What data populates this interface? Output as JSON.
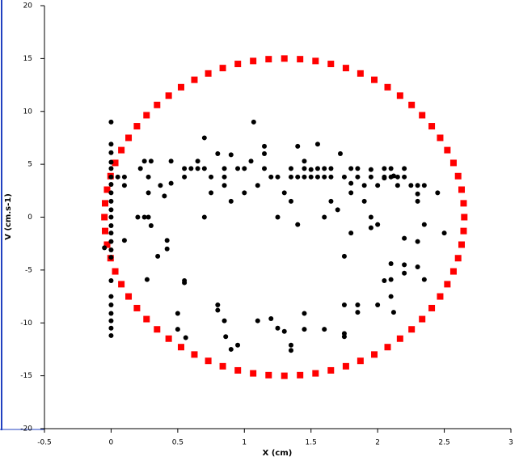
{
  "chart_data": {
    "type": "scatter",
    "x_label": "X (cm)",
    "y_label": "V (cm.s-1)",
    "xlim": [
      -0.5,
      3
    ],
    "ylim": [
      -20,
      20
    ],
    "xticks": [
      -0.5,
      0,
      0.5,
      1,
      1.5,
      2,
      2.5,
      3
    ],
    "yticks": [
      -20,
      -15,
      -10,
      -5,
      0,
      5,
      10,
      15,
      20
    ],
    "series": [
      {
        "color": "#ff0000",
        "marker": "square",
        "x": [
          2.65,
          2.645,
          2.63,
          2.604,
          2.569,
          2.523,
          2.469,
          2.406,
          2.334,
          2.255,
          2.168,
          2.075,
          1.975,
          1.871,
          1.762,
          1.649,
          1.534,
          1.418,
          1.3,
          1.182,
          1.066,
          0.951,
          0.838,
          0.729,
          0.625,
          0.525,
          0.432,
          0.345,
          0.266,
          0.194,
          0.131,
          0.077,
          0.031,
          -0.004,
          -0.03,
          -0.045,
          -0.05,
          -0.045,
          -0.03,
          -0.004,
          0.031,
          0.077,
          0.131,
          0.194,
          0.266,
          0.345,
          0.432,
          0.525,
          0.625,
          0.729,
          0.838,
          0.951,
          1.066,
          1.182,
          1.3,
          1.418,
          1.534,
          1.649,
          1.762,
          1.871,
          1.975,
          2.075,
          2.168,
          2.255,
          2.334,
          2.406,
          2.469,
          2.523,
          2.569,
          2.604,
          2.63,
          2.645
        ],
        "values": [
          0,
          1.31,
          2.6,
          3.88,
          5.13,
          6.34,
          7.5,
          8.6,
          9.64,
          10.61,
          11.49,
          12.29,
          12.99,
          13.59,
          14.1,
          14.49,
          14.77,
          14.94,
          15,
          14.94,
          14.77,
          14.49,
          14.1,
          13.59,
          12.99,
          12.29,
          11.49,
          10.61,
          9.64,
          8.6,
          7.5,
          6.34,
          5.13,
          3.88,
          2.6,
          1.31,
          0,
          -1.31,
          -2.6,
          -3.88,
          -5.13,
          -6.34,
          -7.5,
          -8.6,
          -9.64,
          -10.61,
          -11.49,
          -12.29,
          -12.99,
          -13.59,
          -14.1,
          -14.49,
          -14.77,
          -14.94,
          -15,
          -14.94,
          -14.77,
          -14.49,
          -14.1,
          -13.59,
          -12.99,
          -12.29,
          -11.49,
          -10.61,
          -9.64,
          -8.6,
          -7.5,
          -6.34,
          -5.13,
          -3.88,
          -2.6,
          -1.31
        ]
      },
      {
        "color": "#000000",
        "marker": "circle",
        "x": [
          0,
          0,
          0,
          0,
          0,
          0,
          0,
          0,
          0,
          0,
          0,
          0,
          0,
          0,
          0,
          0,
          0,
          0,
          0,
          0,
          0,
          0,
          0,
          -0.05,
          0.05,
          0.1,
          0.1,
          0.1,
          0.2,
          0.25,
          0.22,
          0.25,
          0.28,
          0.28,
          0.28,
          0.3,
          0.3,
          0.27,
          0.35,
          0.37,
          0.4,
          0.42,
          0.42,
          0.45,
          0.45,
          0.5,
          0.5,
          0.55,
          0.55,
          0.55,
          0.55,
          0.56,
          0.6,
          0.65,
          0.65,
          0.7,
          0.7,
          0.7,
          0.75,
          0.75,
          0.8,
          0.8,
          0.8,
          0.85,
          0.85,
          0.85,
          0.85,
          0.86,
          0.9,
          0.9,
          0.9,
          0.95,
          0.95,
          1,
          1,
          1.05,
          1.07,
          1.1,
          1.1,
          1.15,
          1.15,
          1.15,
          1.2,
          1.2,
          1.25,
          1.25,
          1.25,
          1.3,
          1.3,
          1.35,
          1.35,
          1.35,
          1.35,
          1.35,
          1.4,
          1.4,
          1.4,
          1.45,
          1.45,
          1.45,
          1.45,
          1.45,
          1.5,
          1.5,
          1.55,
          1.55,
          1.55,
          1.6,
          1.6,
          1.6,
          1.65,
          1.65,
          1.65,
          1.6,
          1.7,
          1.72,
          1.75,
          1.75,
          1.75,
          1.75,
          1.75,
          1.8,
          1.8,
          1.8,
          1.8,
          1.85,
          1.85,
          1.85,
          1.85,
          1.9,
          1.9,
          1.95,
          1.95,
          1.95,
          1.95,
          2,
          2,
          2,
          2.05,
          2.05,
          2.05,
          2.05,
          2.1,
          2.1,
          2.1,
          2.1,
          2.12,
          2.12,
          2.15,
          2.15,
          2.2,
          2.2,
          2.2,
          2.2,
          2.2,
          2.25,
          2.3,
          2.3,
          2.3,
          2.3,
          2.35,
          2.35,
          2.35,
          2.45,
          2.5,
          2.3,
          2.1
        ],
        "values": [
          9,
          6.9,
          6.1,
          5.2,
          4.6,
          3.8,
          3.1,
          2.3,
          1.5,
          0.7,
          0,
          -0.8,
          -1.5,
          -2.3,
          -3.1,
          -3.8,
          -6,
          -7.5,
          -8.3,
          -9.1,
          -9.8,
          -10.5,
          -11.2,
          -2.9,
          3.8,
          3.8,
          3,
          -2.2,
          0,
          0,
          4.6,
          5.3,
          3.8,
          2.3,
          0,
          -0.8,
          5.3,
          -5.9,
          -3.7,
          3,
          2,
          -2.2,
          -3,
          5.3,
          3.2,
          -9.1,
          -10.6,
          3.8,
          4.6,
          -6,
          -6.2,
          -11.4,
          4.6,
          4.6,
          5.3,
          0,
          7.5,
          4.6,
          3.8,
          2.3,
          6,
          -8.3,
          -8.8,
          4.6,
          3.8,
          3,
          -9.8,
          -11.3,
          5.9,
          -12.5,
          1.5,
          4.6,
          -12.1,
          4.6,
          2.3,
          5.3,
          9,
          3,
          -9.8,
          6,
          6.7,
          4.6,
          3.8,
          -9.6,
          3.8,
          0,
          -10.5,
          2.3,
          -10.8,
          4.6,
          3.8,
          1.5,
          -12.1,
          -12.6,
          6.7,
          3.8,
          -0.7,
          5.3,
          3.8,
          4.6,
          -9.1,
          -10.6,
          4.5,
          3.8,
          6.9,
          4.6,
          3.8,
          3.8,
          -10.6,
          4.6,
          1.5,
          3.8,
          4.6,
          0,
          0.7,
          6,
          3.8,
          -3.7,
          -8.3,
          -11,
          -11.3,
          4.6,
          3.2,
          2.3,
          -1.5,
          4.6,
          -8.3,
          -9,
          3.8,
          1.5,
          3,
          4.5,
          0,
          -1,
          3.8,
          -0.7,
          -8.3,
          3,
          4.6,
          3.8,
          3.7,
          -6,
          4.6,
          3.8,
          -5.9,
          -7.5,
          -9,
          3.9,
          3.8,
          3,
          3.8,
          4.6,
          -5.3,
          -4.5,
          -2,
          3,
          2.2,
          1.5,
          3,
          -2.3,
          3,
          -0.7,
          -5.9,
          2.3,
          -1.5,
          -4.7,
          -4.4
        ]
      }
    ]
  }
}
